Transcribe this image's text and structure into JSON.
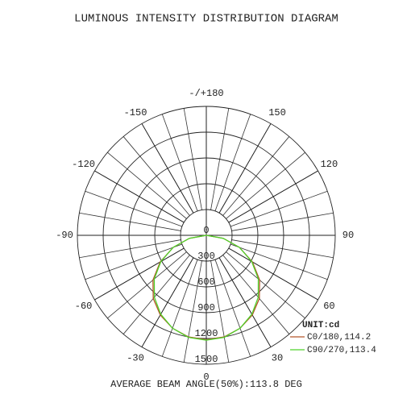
{
  "chart_data": {
    "type": "polar",
    "title": "LUMINOUS INTENSITY DISTRIBUTION DIAGRAM",
    "unit_label": "UNIT:cd",
    "footer": "AVERAGE BEAM ANGLE(50%):113.8 DEG",
    "x": [
      -90,
      -80,
      -70,
      -60,
      -50,
      -40,
      -30,
      -20,
      -10,
      0,
      10,
      20,
      30,
      40,
      50,
      60,
      70,
      80,
      90
    ],
    "xticks": [
      {
        "value": 180,
        "label": "-/+180"
      },
      -150,
      150,
      -120,
      120,
      -90,
      90,
      -60,
      60,
      -30,
      30,
      0
    ],
    "ylim": [
      0,
      1500
    ],
    "yticks": [
      0,
      300,
      600,
      900,
      1200,
      1500
    ],
    "series": [
      {
        "name": "C0/180,114.2",
        "color": "#b5562a",
        "values": [
          0,
          200,
          410,
          620,
          810,
          960,
          1070,
          1150,
          1200,
          1215,
          1200,
          1150,
          1070,
          960,
          810,
          620,
          410,
          200,
          0
        ]
      },
      {
        "name": "C90/270,113.4",
        "color": "#4fd22a",
        "values": [
          0,
          200,
          410,
          610,
          790,
          940,
          1060,
          1150,
          1205,
          1220,
          1205,
          1150,
          1060,
          940,
          790,
          610,
          410,
          200,
          0
        ]
      }
    ]
  }
}
